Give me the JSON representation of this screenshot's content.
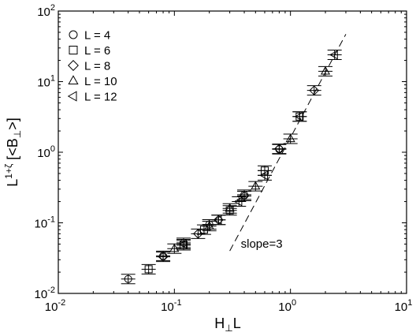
{
  "chart_data": {
    "type": "scatter",
    "x_scale": "log",
    "y_scale": "log",
    "xlim": [
      0.01,
      10
    ],
    "ylim": [
      0.01,
      100
    ],
    "x_ticks": [
      {
        "value": 0.01,
        "base": "10",
        "exp": "-2"
      },
      {
        "value": 0.1,
        "base": "10",
        "exp": "-1"
      },
      {
        "value": 1,
        "base": "10",
        "exp": "0"
      },
      {
        "value": 10,
        "base": "10",
        "exp": "1"
      }
    ],
    "y_ticks": [
      {
        "value": 0.01,
        "base": "10",
        "exp": "-2"
      },
      {
        "value": 0.1,
        "base": "10",
        "exp": "-1"
      },
      {
        "value": 1,
        "base": "10",
        "exp": "0"
      },
      {
        "value": 10,
        "base": "10",
        "exp": "1"
      },
      {
        "value": 100,
        "base": "10",
        "exp": "2"
      }
    ],
    "xlabel": {
      "main": "H",
      "perp": "⊥",
      "tail": "L"
    },
    "ylabel": {
      "main": "L",
      "sup": "1+ζ",
      "middle": "[<B",
      "perp": "⊥",
      "tail": ">]"
    },
    "grid": false,
    "legend_position": "top-left",
    "series": [
      {
        "name": "L = 4",
        "marker": "circle",
        "points": [
          {
            "x": 0.04,
            "y": 0.016
          },
          {
            "x": 0.08,
            "y": 0.034
          },
          {
            "x": 0.12,
            "y": 0.052
          },
          {
            "x": 0.2,
            "y": 0.095
          },
          {
            "x": 0.4,
            "y": 0.25
          },
          {
            "x": 0.8,
            "y": 1.1
          }
        ]
      },
      {
        "name": "L = 6",
        "marker": "square",
        "points": [
          {
            "x": 0.06,
            "y": 0.022
          },
          {
            "x": 0.12,
            "y": 0.048
          },
          {
            "x": 0.18,
            "y": 0.08
          },
          {
            "x": 0.3,
            "y": 0.15
          },
          {
            "x": 0.6,
            "y": 0.55
          },
          {
            "x": 1.2,
            "y": 3.2
          }
        ]
      },
      {
        "name": "L = 8",
        "marker": "diamond",
        "points": [
          {
            "x": 0.08,
            "y": 0.033
          },
          {
            "x": 0.16,
            "y": 0.07
          },
          {
            "x": 0.24,
            "y": 0.11
          },
          {
            "x": 0.4,
            "y": 0.24
          },
          {
            "x": 0.8,
            "y": 1.12
          },
          {
            "x": 1.6,
            "y": 7.5
          }
        ]
      },
      {
        "name": "L = 10",
        "marker": "triangle-up",
        "points": [
          {
            "x": 0.1,
            "y": 0.043
          },
          {
            "x": 0.2,
            "y": 0.09
          },
          {
            "x": 0.3,
            "y": 0.16
          },
          {
            "x": 0.5,
            "y": 0.33
          },
          {
            "x": 1.0,
            "y": 1.55
          },
          {
            "x": 2.0,
            "y": 14
          }
        ]
      },
      {
        "name": "L = 12",
        "marker": "triangle-left",
        "points": [
          {
            "x": 0.12,
            "y": 0.05
          },
          {
            "x": 0.24,
            "y": 0.11
          },
          {
            "x": 0.36,
            "y": 0.2
          },
          {
            "x": 0.6,
            "y": 0.47
          },
          {
            "x": 1.2,
            "y": 3.2
          },
          {
            "x": 2.4,
            "y": 24
          }
        ]
      }
    ],
    "reference_line": {
      "label": "slope=3",
      "slope": 3,
      "x_start": 0.3,
      "y_start": 0.04,
      "x_end": 3,
      "y_end": 47
    }
  }
}
